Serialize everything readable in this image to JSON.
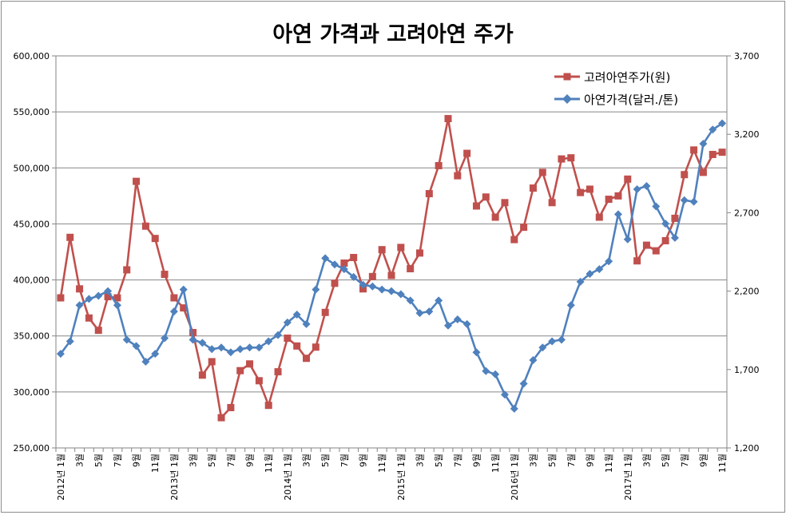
{
  "chart_data": {
    "type": "line",
    "title": "아연 가격과 고려아연 주가",
    "x_tick_labels": [
      "2012년 1월",
      "3월",
      "5월",
      "7월",
      "9월",
      "11월",
      "2013년 1월",
      "3월",
      "5월",
      "7월",
      "9월",
      "11월",
      "2014년 1월",
      "3월",
      "5월",
      "7월",
      "9월",
      "11월",
      "2015년 1월",
      "3월",
      "5월",
      "7월",
      "9월",
      "11월",
      "2016년 1월",
      "3월",
      "5월",
      "7월",
      "9월",
      "11월",
      "2017년 1월",
      "3월",
      "5월",
      "7월",
      "9월",
      "11월"
    ],
    "y_left": {
      "min": 250000,
      "max": 600000,
      "step": 50000,
      "tick_labels": [
        "250,000",
        "300,000",
        "350,000",
        "400,000",
        "450,000",
        "500,000",
        "550,000",
        "600,000"
      ]
    },
    "y_right": {
      "min": 1200,
      "max": 3700,
      "step": 500,
      "tick_labels": [
        "1,200",
        "1,700",
        "2,200",
        "2,700",
        "3,200",
        "3,700"
      ]
    },
    "grid": true,
    "legend_position": "top-right",
    "series": [
      {
        "name": "고려아연주가(원)",
        "axis": "left",
        "color": "#c0504d",
        "marker": "square",
        "values": [
          384000,
          438000,
          392000,
          366000,
          355000,
          385000,
          384000,
          409000,
          488000,
          448000,
          437000,
          405000,
          384000,
          375000,
          353000,
          315000,
          327000,
          277000,
          286000,
          319000,
          325000,
          310000,
          288000,
          318000,
          348000,
          341000,
          330000,
          340000,
          371000,
          397000,
          415000,
          420000,
          392000,
          403000,
          427000,
          404000,
          429000,
          410000,
          424000,
          477000,
          502000,
          544000,
          493000,
          513000,
          466000,
          474000,
          456000,
          469000,
          436000,
          447000,
          482000,
          496000,
          469000,
          508000,
          509000,
          478000,
          481000,
          456000,
          472000,
          475000,
          490000,
          417000,
          431000,
          426000,
          435000,
          455000,
          494000,
          516000,
          496000,
          512000,
          514000
        ]
      },
      {
        "name": "아연가격(달러./톤)",
        "axis": "right",
        "color": "#4f81bd",
        "marker": "diamond",
        "values": [
          1800,
          1880,
          2110,
          2150,
          2170,
          2200,
          2110,
          1890,
          1850,
          1750,
          1800,
          1900,
          2070,
          2210,
          1890,
          1870,
          1830,
          1840,
          1810,
          1830,
          1840,
          1840,
          1880,
          1920,
          2000,
          2050,
          1990,
          2210,
          2410,
          2370,
          2340,
          2290,
          2240,
          2230,
          2210,
          2200,
          2180,
          2140,
          2060,
          2070,
          2140,
          1980,
          2020,
          1990,
          1810,
          1690,
          1670,
          1540,
          1450,
          1610,
          1760,
          1840,
          1880,
          1890,
          2110,
          2260,
          2310,
          2340,
          2390,
          2690,
          2530,
          2850,
          2870,
          2740,
          2630,
          2540,
          2780,
          2770,
          3140,
          3230,
          3270
        ]
      }
    ]
  }
}
